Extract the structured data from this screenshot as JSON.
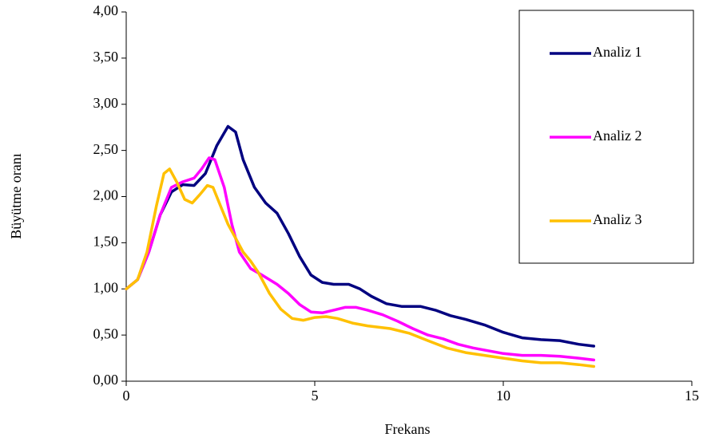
{
  "chart_data": {
    "type": "line",
    "x_label": "Frekans",
    "y_label": "Büyütme oranı",
    "xlim": [
      0,
      15
    ],
    "xticks": [
      0,
      5,
      10,
      15
    ],
    "ylim": [
      0,
      4
    ],
    "yticks": [
      {
        "value": 0,
        "label": "0,00"
      },
      {
        "value": 0.5,
        "label": "0,50"
      },
      {
        "value": 1,
        "label": "1,00"
      },
      {
        "value": 1.5,
        "label": "1,50"
      },
      {
        "value": 2,
        "label": "2,00"
      },
      {
        "value": 2.5,
        "label": "2,50"
      },
      {
        "value": 3,
        "label": "3,00"
      },
      {
        "value": 3.5,
        "label": "3,50"
      },
      {
        "value": 4,
        "label": "4,00"
      }
    ],
    "grid": false,
    "legend": "top-right",
    "series": [
      {
        "name": "Analiz 1",
        "color": "#000080",
        "x": [
          0,
          0.3,
          0.6,
          0.9,
          1.2,
          1.5,
          1.8,
          2.1,
          2.4,
          2.7,
          2.9,
          3.1,
          3.4,
          3.7,
          4.0,
          4.3,
          4.6,
          4.9,
          5.2,
          5.5,
          5.9,
          6.2,
          6.5,
          6.9,
          7.3,
          7.8,
          8.2,
          8.6,
          9.0,
          9.5,
          10.0,
          10.5,
          11.0,
          11.5,
          12.0,
          12.4
        ],
        "values": [
          1.0,
          1.1,
          1.4,
          1.8,
          2.05,
          2.13,
          2.12,
          2.25,
          2.55,
          2.76,
          2.7,
          2.4,
          2.1,
          1.93,
          1.82,
          1.6,
          1.35,
          1.15,
          1.07,
          1.05,
          1.05,
          1.0,
          0.92,
          0.84,
          0.81,
          0.81,
          0.77,
          0.71,
          0.67,
          0.61,
          0.53,
          0.47,
          0.45,
          0.44,
          0.4,
          0.38
        ]
      },
      {
        "name": "Analiz 2",
        "color": "#ff00ff",
        "x": [
          0,
          0.3,
          0.6,
          0.9,
          1.2,
          1.5,
          1.8,
          2.0,
          2.2,
          2.35,
          2.6,
          2.8,
          3.0,
          3.3,
          3.6,
          4.0,
          4.3,
          4.6,
          4.9,
          5.2,
          5.5,
          5.8,
          6.1,
          6.4,
          6.8,
          7.2,
          7.6,
          8.0,
          8.4,
          8.8,
          9.2,
          9.6,
          10.0,
          10.5,
          11.0,
          11.5,
          12.0,
          12.4
        ],
        "values": [
          1.0,
          1.1,
          1.4,
          1.8,
          2.1,
          2.16,
          2.2,
          2.3,
          2.42,
          2.4,
          2.1,
          1.7,
          1.4,
          1.22,
          1.15,
          1.05,
          0.95,
          0.83,
          0.75,
          0.74,
          0.77,
          0.8,
          0.8,
          0.77,
          0.72,
          0.65,
          0.57,
          0.5,
          0.46,
          0.4,
          0.36,
          0.33,
          0.3,
          0.28,
          0.28,
          0.27,
          0.25,
          0.23
        ]
      },
      {
        "name": "Analiz 3",
        "color": "#ffc000",
        "x": [
          0,
          0.3,
          0.55,
          0.8,
          1.0,
          1.15,
          1.35,
          1.55,
          1.75,
          1.95,
          2.15,
          2.3,
          2.5,
          2.7,
          2.9,
          3.1,
          3.3,
          3.5,
          3.8,
          4.1,
          4.4,
          4.7,
          5.0,
          5.3,
          5.6,
          6.0,
          6.4,
          7.0,
          7.5,
          8.0,
          8.5,
          9.0,
          9.5,
          10.0,
          10.5,
          11.0,
          11.5,
          12.0,
          12.4
        ],
        "values": [
          1.0,
          1.1,
          1.4,
          1.9,
          2.25,
          2.3,
          2.15,
          1.97,
          1.93,
          2.02,
          2.12,
          2.1,
          1.9,
          1.7,
          1.55,
          1.4,
          1.3,
          1.18,
          0.95,
          0.78,
          0.68,
          0.66,
          0.69,
          0.7,
          0.68,
          0.63,
          0.6,
          0.57,
          0.52,
          0.44,
          0.36,
          0.31,
          0.28,
          0.25,
          0.22,
          0.2,
          0.2,
          0.18,
          0.16
        ]
      }
    ]
  }
}
